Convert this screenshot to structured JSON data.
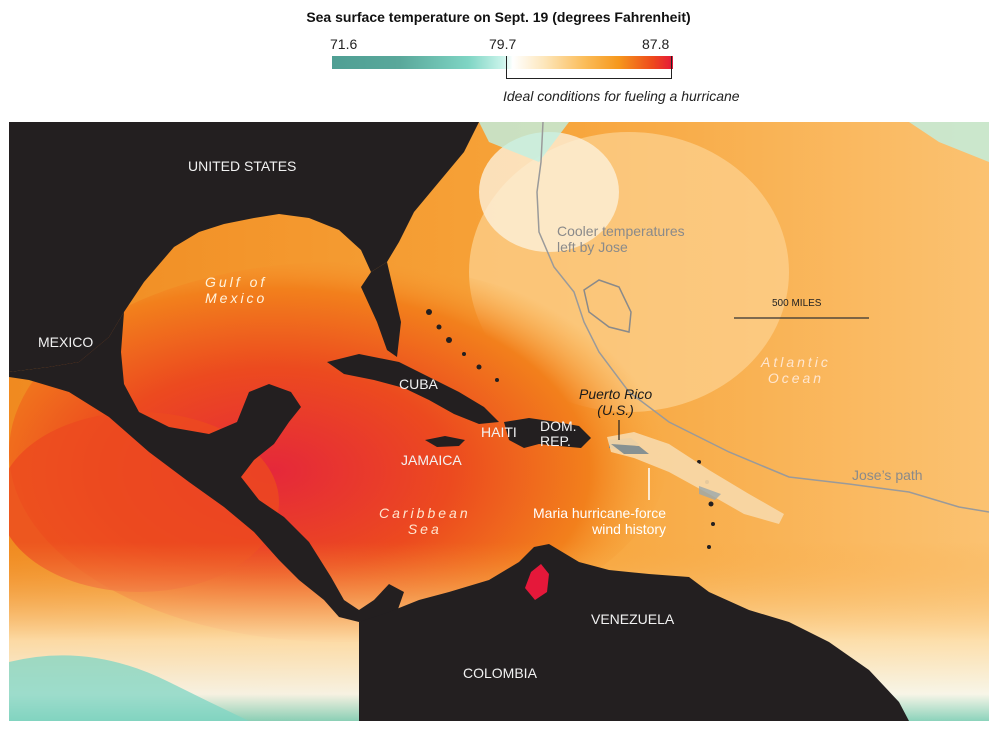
{
  "legend": {
    "title": "Sea surface temperature on Sept. 19 (degrees Fahrenheit)",
    "min": "71.6",
    "mid": "79.7",
    "max": "87.8",
    "ideal_note": "Ideal conditions for fueling a hurricane",
    "colors": {
      "cool": "#4f9f94",
      "neutral": "#ffffff",
      "warm": "#f6981d",
      "hot": "#e5183a"
    }
  },
  "map": {
    "land_labels": {
      "us": "UNITED STATES",
      "mexico": "MEXICO",
      "cuba": "CUBA",
      "haiti": "HAITI",
      "dom_rep_1": "DOM.",
      "dom_rep_2": "REP.",
      "jamaica": "JAMAICA",
      "venezuela": "VENEZUELA",
      "colombia": "COLOMBIA"
    },
    "water_labels": {
      "gulf_1": "Gulf of",
      "gulf_2": "Mexico",
      "atlantic_1": "Atlantic",
      "atlantic_2": "Ocean",
      "caribbean_1": "Caribbean",
      "caribbean_2": "Sea"
    },
    "annotations": {
      "cooler_1": "Cooler temperatures",
      "cooler_2": "left by Jose",
      "jose_path": "Jose’s path",
      "puerto_rico_1": "Puerto Rico",
      "puerto_rico_2": "(U.S.)",
      "maria_1": "Maria hurricane-force",
      "maria_2": "wind history",
      "scale": "500 MILES"
    },
    "colors": {
      "land": "#231f20",
      "ocean_warm": "#f7a43a",
      "ocean_hot": "#ea3f20",
      "track": "#9a9a9a"
    }
  }
}
